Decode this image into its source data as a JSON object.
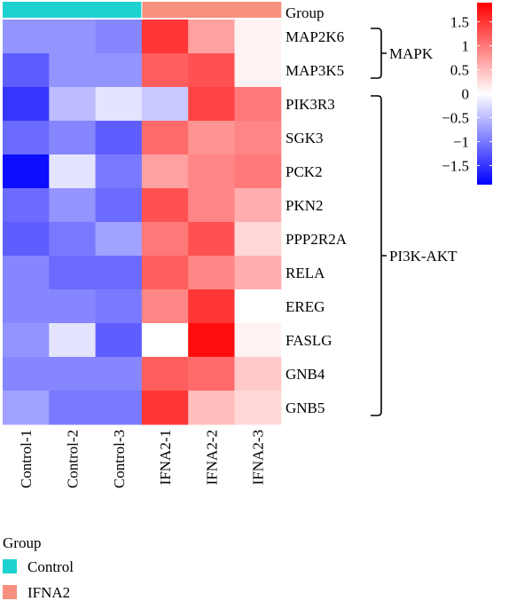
{
  "chart_data": {
    "type": "heatmap",
    "annotation_label": "Group",
    "columns": [
      "Control-1",
      "Control-2",
      "Control-3",
      "IFNA2-1",
      "IFNA2-2",
      "IFNA2-3"
    ],
    "column_groups": [
      "Control",
      "Control",
      "Control",
      "IFNA2",
      "IFNA2",
      "IFNA2"
    ],
    "rows": [
      "MAP2K6",
      "MAP3K5",
      "PIK3R3",
      "SGK3",
      "PCK2",
      "PKN2",
      "PPP2R2A",
      "RELA",
      "EREG",
      "FASLG",
      "GNB4",
      "GNB5"
    ],
    "values": [
      [
        -0.8,
        -0.8,
        -0.9,
        1.5,
        0.7,
        0.1
      ],
      [
        -1.2,
        -0.8,
        -0.8,
        1.2,
        1.3,
        0.1
      ],
      [
        -1.5,
        -0.5,
        -0.2,
        -0.4,
        1.4,
        1.0
      ],
      [
        -1.1,
        -0.9,
        -1.2,
        1.1,
        0.8,
        0.9
      ],
      [
        -1.8,
        -0.2,
        -1.0,
        0.7,
        0.9,
        1.0
      ],
      [
        -1.1,
        -0.8,
        -1.1,
        1.3,
        0.9,
        0.6
      ],
      [
        -1.2,
        -1.0,
        -0.7,
        1.0,
        1.3,
        0.3
      ],
      [
        -0.9,
        -1.1,
        -1.1,
        1.2,
        0.9,
        0.6
      ],
      [
        -0.9,
        -0.9,
        -1.0,
        0.9,
        1.5,
        0.0
      ],
      [
        -0.8,
        -0.2,
        -1.2,
        0.0,
        1.8,
        0.1
      ],
      [
        -0.9,
        -0.9,
        -0.9,
        1.2,
        1.1,
        0.4
      ],
      [
        -0.7,
        -1.0,
        -1.0,
        1.5,
        0.5,
        0.3
      ]
    ],
    "row_groups": [
      {
        "label": "MAPK",
        "first_row": 0,
        "last_row": 1
      },
      {
        "label": "PI3K-AKT",
        "first_row": 2,
        "last_row": 11
      }
    ],
    "color_scale": {
      "min": -1.9,
      "max": 1.9,
      "low": "#0000ff",
      "mid": "#ffffff",
      "high": "#ff0000"
    },
    "colorbar_ticks": [
      1.5,
      1,
      0.5,
      0,
      -0.5,
      -1,
      -1.5
    ],
    "colorbar_tick_labels": [
      "1.5",
      "1",
      "0.5",
      "0",
      "−0.5",
      "−1",
      "−1.5"
    ],
    "group_colors": {
      "Control": "#1fd2d2",
      "IFNA2": "#f7907f"
    },
    "legend": {
      "title": "Group",
      "entries": [
        {
          "label": "Control",
          "color": "#1fd2d2"
        },
        {
          "label": "IFNA2",
          "color": "#f7907f"
        }
      ]
    }
  }
}
